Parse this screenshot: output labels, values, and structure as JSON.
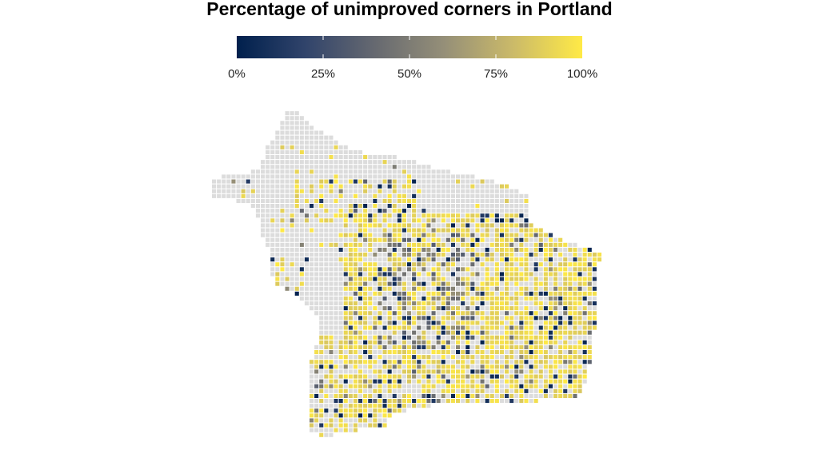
{
  "title": "Percentage of unimproved corners in Portland",
  "legend": {
    "ticks": [
      "0%",
      "25%",
      "50%",
      "75%",
      "100%"
    ],
    "gradient_colors": [
      "#00204D",
      "#31446B",
      "#666970",
      "#958F78",
      "#CBBA69",
      "#FFEA46"
    ]
  },
  "colors": {
    "no_data": "#DCDCDC",
    "low": "#00204D",
    "mid": "#7C7B78",
    "high": "#FFEA46",
    "background": "#FFFFFF"
  },
  "map": {
    "region": "Portland",
    "value_scale": "0-100 percent",
    "note_cells": "grid of small square cells, gray = no data, colored by percentage"
  }
}
